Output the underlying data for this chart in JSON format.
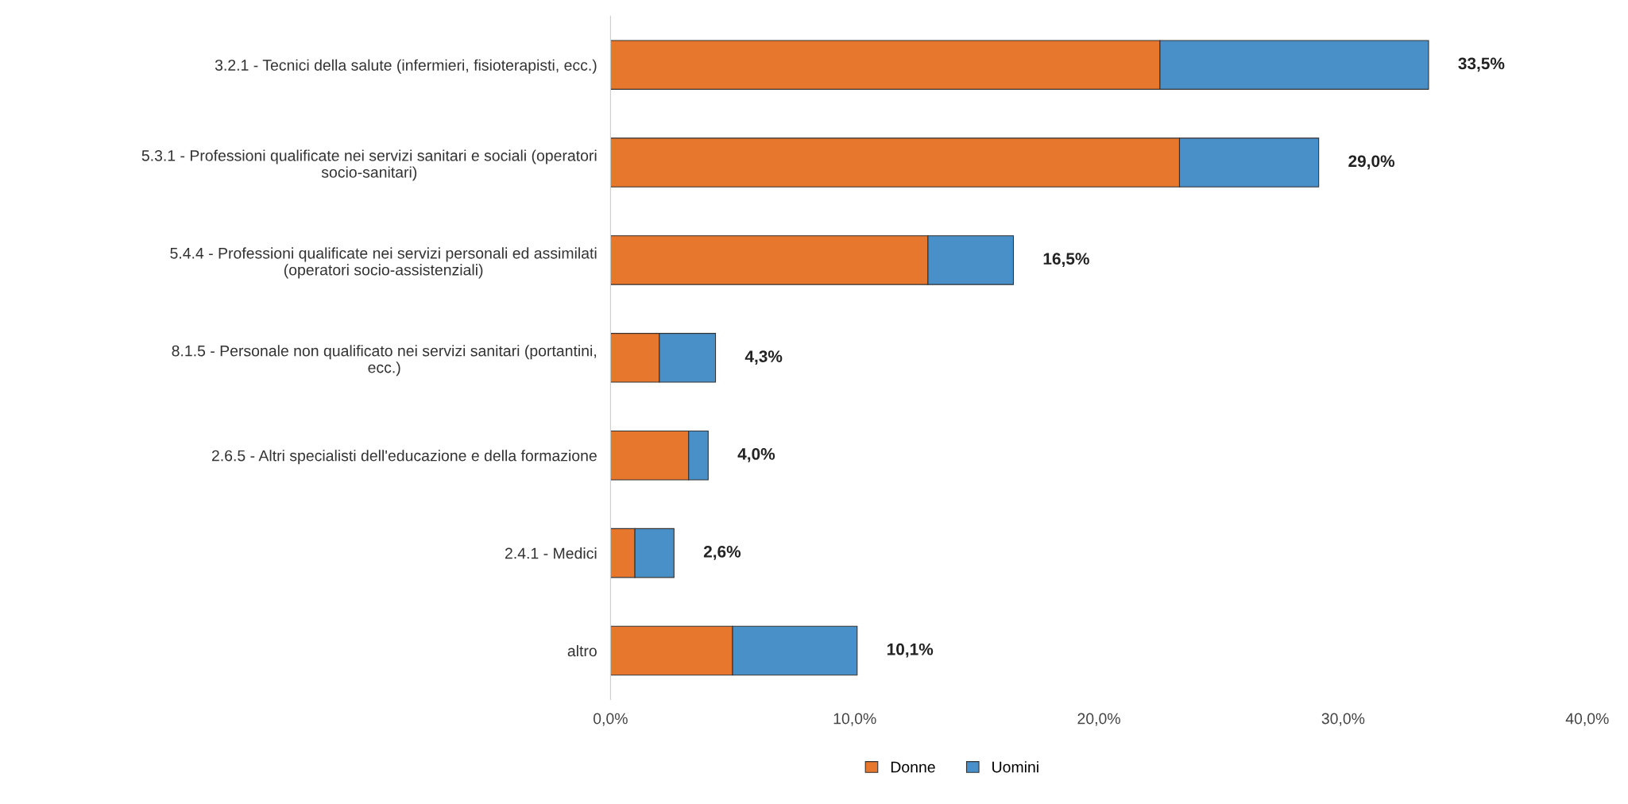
{
  "chart_data": {
    "type": "bar",
    "orientation": "horizontal",
    "stacked": true,
    "categories": [
      "3.2.1 - Tecnici della salute (infermieri, fisioterapisti, ecc.)",
      "5.3.1 - Professioni qualificate nei servizi sanitari e sociali (operatori\nsocio-sanitari)",
      "5.4.4 - Professioni qualificate nei servizi personali ed assimilati\n(operatori socio-assistenziali)",
      "8.1.5 - Personale non qualificato nei servizi sanitari (portantini,\necc.)",
      "2.6.5 - Altri specialisti dell'educazione e della formazione",
      "2.4.1 - Medici",
      "altro"
    ],
    "series": [
      {
        "name": "Donne",
        "color": "#e8772e",
        "values": [
          22.5,
          23.3,
          13.0,
          2.0,
          3.2,
          1.0,
          5.0
        ]
      },
      {
        "name": "Uomini",
        "color": "#4a90c8",
        "values": [
          11.0,
          5.7,
          3.5,
          2.3,
          0.8,
          1.6,
          5.1
        ]
      }
    ],
    "totals": [
      "33,5%",
      "29,0%",
      "16,5%",
      "4,3%",
      "4,0%",
      "2,6%",
      "10,1%"
    ],
    "xlim": [
      0,
      40
    ],
    "xticks": [
      {
        "value": 0,
        "label": "0,0%"
      },
      {
        "value": 10,
        "label": "10,0%"
      },
      {
        "value": 20,
        "label": "20,0%"
      },
      {
        "value": 30,
        "label": "30,0%"
      },
      {
        "value": 40,
        "label": "40,0%"
      }
    ],
    "grid": false,
    "legend": "bottom"
  }
}
